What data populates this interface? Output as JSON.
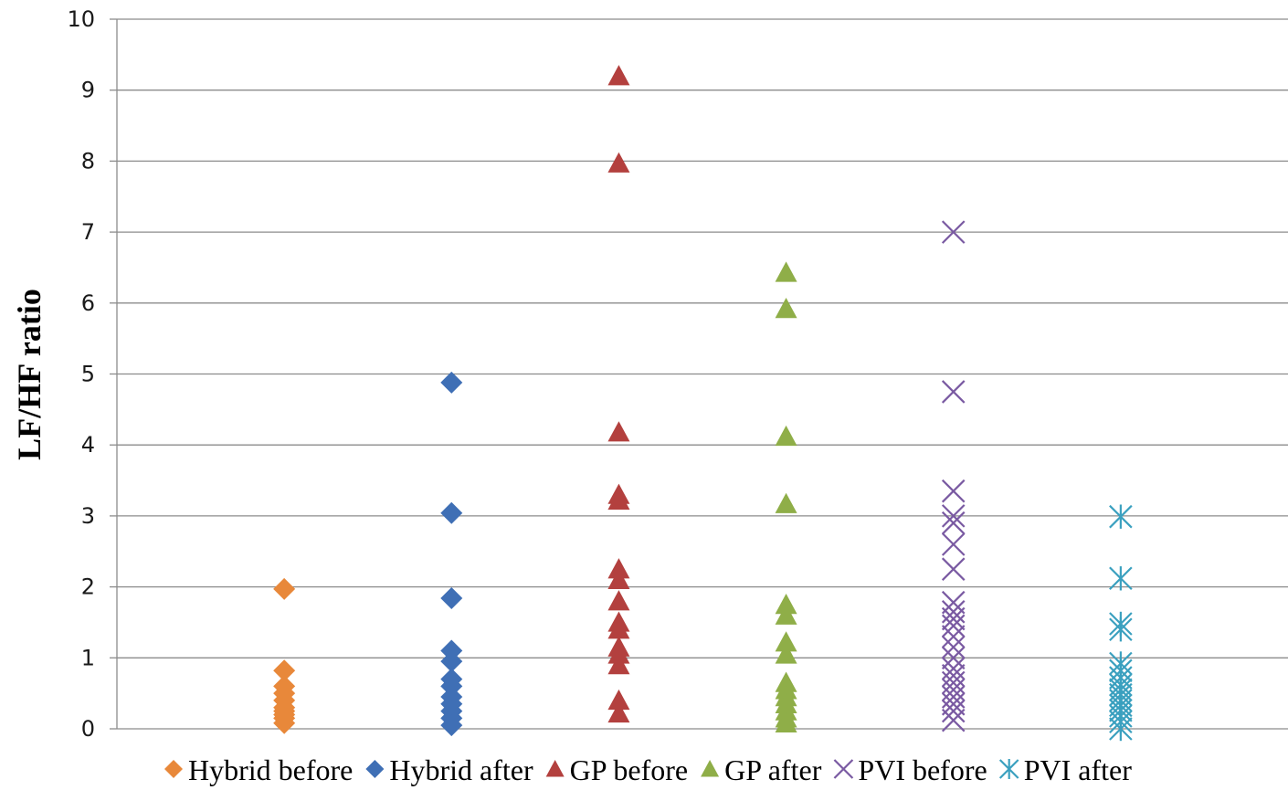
{
  "chart_data": {
    "type": "scatter",
    "title": "",
    "xlabel": "",
    "ylabel": "LF/HF ratio",
    "ylim": [
      0,
      10
    ],
    "yticks": [
      0,
      1,
      2,
      3,
      4,
      5,
      6,
      7,
      8,
      9,
      10
    ],
    "grid": true,
    "legend_position": "bottom",
    "series": [
      {
        "name": "Hybrid before",
        "x": 1,
        "marker": "diamond",
        "color": "#e8883a",
        "values": [
          1.97,
          0.82,
          0.6,
          0.5,
          0.4,
          0.3,
          0.25,
          0.2,
          0.15,
          0.08
        ]
      },
      {
        "name": "Hybrid after",
        "x": 2,
        "marker": "diamond",
        "color": "#3f6fb5",
        "values": [
          4.88,
          3.04,
          1.84,
          1.1,
          0.95,
          0.7,
          0.6,
          0.45,
          0.35,
          0.25,
          0.15,
          0.05
        ]
      },
      {
        "name": "GP before",
        "x": 3,
        "marker": "triangle",
        "color": "#b3403e",
        "values": [
          9.2,
          7.97,
          4.18,
          3.3,
          3.22,
          2.25,
          2.1,
          1.8,
          1.5,
          1.4,
          1.15,
          1.05,
          0.9,
          0.4,
          0.22
        ]
      },
      {
        "name": "GP after",
        "x": 4,
        "marker": "triangle",
        "color": "#8fae48",
        "values": [
          6.43,
          5.92,
          4.12,
          3.17,
          1.75,
          1.6,
          1.22,
          1.05,
          0.65,
          0.55,
          0.45,
          0.35,
          0.25,
          0.15,
          0.08
        ]
      },
      {
        "name": "PVI before",
        "x": 5,
        "marker": "x",
        "color": "#7a5aa2",
        "values": [
          7.0,
          4.75,
          3.35,
          3.0,
          2.9,
          2.6,
          2.25,
          1.78,
          1.65,
          1.55,
          1.45,
          1.3,
          1.15,
          1.0,
          0.85,
          0.75,
          0.65,
          0.55,
          0.45,
          0.35,
          0.25,
          0.12
        ]
      },
      {
        "name": "PVI after",
        "x": 6,
        "marker": "star",
        "color": "#3aa0bf",
        "values": [
          2.99,
          2.12,
          1.48,
          1.4,
          0.92,
          0.82,
          0.72,
          0.62,
          0.55,
          0.48,
          0.4,
          0.33,
          0.26,
          0.18,
          0.1,
          0.0
        ]
      }
    ]
  }
}
